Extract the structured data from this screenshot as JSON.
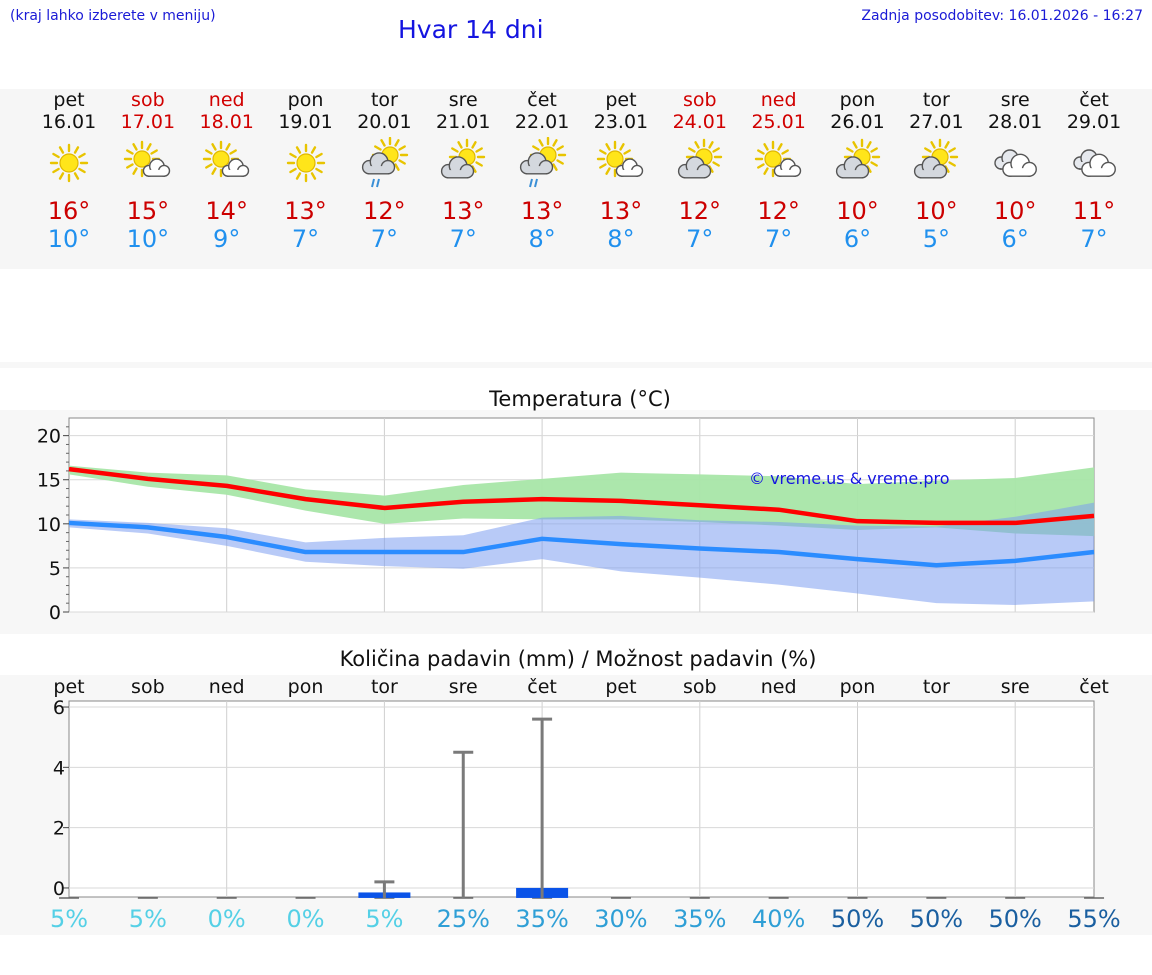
{
  "header": {
    "hint": "(kraj lahko izberete v meniju)",
    "title": "Hvar 14 dni",
    "updated": "Zadnja posodobitev: 16.01.2026 - 16:27"
  },
  "colors": {
    "max_temp": "#ff0000",
    "min_temp": "#2b8cff",
    "max_band": "#a8e6a8",
    "min_band": "#a9c0f2",
    "overlap_band": "#7cc3a3",
    "precip_bar": "#0a53e8",
    "link": "#1414e0"
  },
  "days": [
    {
      "name": "pet",
      "date": "16.01",
      "icon": "sun-icon",
      "max": "16°",
      "min": "10°",
      "weekend": false
    },
    {
      "name": "sob",
      "date": "17.01",
      "icon": "sun-cloud-icon",
      "max": "15°",
      "min": "10°",
      "weekend": true
    },
    {
      "name": "ned",
      "date": "18.01",
      "icon": "sun-cloud-icon",
      "max": "14°",
      "min": "9°",
      "weekend": true
    },
    {
      "name": "pon",
      "date": "19.01",
      "icon": "sun-icon",
      "max": "13°",
      "min": "7°",
      "weekend": false
    },
    {
      "name": "tor",
      "date": "20.01",
      "icon": "sun-cloud-rain-icon",
      "max": "12°",
      "min": "7°",
      "weekend": false
    },
    {
      "name": "sre",
      "date": "21.01",
      "icon": "cloud-sun-icon",
      "max": "13°",
      "min": "7°",
      "weekend": false
    },
    {
      "name": "čet",
      "date": "22.01",
      "icon": "sun-cloud-rain-icon",
      "max": "13°",
      "min": "8°",
      "weekend": false
    },
    {
      "name": "pet",
      "date": "23.01",
      "icon": "sun-cloud-icon",
      "max": "13°",
      "min": "8°",
      "weekend": false
    },
    {
      "name": "sob",
      "date": "24.01",
      "icon": "cloud-sun-icon",
      "max": "12°",
      "min": "7°",
      "weekend": true
    },
    {
      "name": "ned",
      "date": "25.01",
      "icon": "sun-cloud-icon",
      "max": "12°",
      "min": "7°",
      "weekend": true
    },
    {
      "name": "pon",
      "date": "26.01",
      "icon": "cloud-sun-icon",
      "max": "10°",
      "min": "6°",
      "weekend": false
    },
    {
      "name": "tor",
      "date": "27.01",
      "icon": "cloud-sun-icon",
      "max": "10°",
      "min": "5°",
      "weekend": false
    },
    {
      "name": "sre",
      "date": "28.01",
      "icon": "clouds-icon",
      "max": "10°",
      "min": "6°",
      "weekend": false
    },
    {
      "name": "čet",
      "date": "29.01",
      "icon": "clouds-icon",
      "max": "11°",
      "min": "7°",
      "weekend": false
    }
  ],
  "chart_data": [
    {
      "type": "line",
      "title": "Temperatura (°C)",
      "watermark": "© vreme.us & vreme.pro",
      "x": [
        "16.01",
        "17.01",
        "18.01",
        "19.01",
        "20.01",
        "21.01",
        "22.01",
        "23.01",
        "24.01",
        "25.01",
        "26.01",
        "27.01",
        "28.01",
        "29.01"
      ],
      "ylim": [
        0,
        22
      ],
      "yticks": [
        0,
        5,
        10,
        15,
        20
      ],
      "series": [
        {
          "name": "max",
          "values": [
            16.2,
            15.1,
            14.3,
            12.8,
            11.8,
            12.5,
            12.8,
            12.6,
            12.1,
            11.6,
            10.3,
            10.1,
            10.1,
            10.9
          ]
        },
        {
          "name": "min",
          "values": [
            10.1,
            9.6,
            8.5,
            6.8,
            6.8,
            6.8,
            8.3,
            7.7,
            7.2,
            6.8,
            6.0,
            5.3,
            5.8,
            6.8
          ]
        },
        {
          "name": "max_range_low",
          "values": [
            15.6,
            14.2,
            13.3,
            11.5,
            10.0,
            10.6,
            10.5,
            10.5,
            10.2,
            9.8,
            9.3,
            9.6,
            8.9,
            8.6
          ]
        },
        {
          "name": "max_range_high",
          "values": [
            16.6,
            15.8,
            15.5,
            13.9,
            13.2,
            14.4,
            15.1,
            15.8,
            15.6,
            15.4,
            14.5,
            14.9,
            15.2,
            16.4
          ]
        },
        {
          "name": "min_range_low",
          "values": [
            9.6,
            8.9,
            7.5,
            5.7,
            5.2,
            4.9,
            6.0,
            4.6,
            3.9,
            3.1,
            2.1,
            1.0,
            0.8,
            1.2
          ]
        },
        {
          "name": "min_range_high",
          "values": [
            10.5,
            10.1,
            9.5,
            7.9,
            8.4,
            8.7,
            10.7,
            10.9,
            10.4,
            10.2,
            9.8,
            9.7,
            10.8,
            12.4
          ]
        }
      ]
    },
    {
      "type": "bar",
      "title": "Količina padavin (mm) / Možnost padavin (%)",
      "categories": [
        "pet",
        "sob",
        "ned",
        "pon",
        "tor",
        "sre",
        "čet",
        "pet",
        "sob",
        "ned",
        "pon",
        "tor",
        "sre",
        "čet"
      ],
      "ylim": [
        0,
        6.2
      ],
      "yticks": [
        0,
        2,
        4,
        6
      ],
      "values": [
        0,
        0,
        0,
        0,
        0.05,
        0,
        0.2,
        0,
        0,
        0,
        0,
        0,
        0,
        0
      ],
      "range_high": [
        0,
        0,
        0,
        0,
        0.2,
        4.5,
        5.6,
        0,
        0,
        0,
        0,
        0,
        0,
        0
      ],
      "probability": [
        "5%",
        "5%",
        "0%",
        "0%",
        "5%",
        "25%",
        "35%",
        "30%",
        "35%",
        "40%",
        "50%",
        "50%",
        "50%",
        "55%"
      ],
      "probability_colors": [
        "#55d0e6",
        "#55d0e6",
        "#55d0e6",
        "#55d0e6",
        "#55d0e6",
        "#2f9fd6",
        "#2f9fd6",
        "#2f9fd6",
        "#2f9fd6",
        "#2f9fd6",
        "#1a5fa0",
        "#1a5fa0",
        "#1a5fa0",
        "#1a5fa0"
      ]
    }
  ]
}
